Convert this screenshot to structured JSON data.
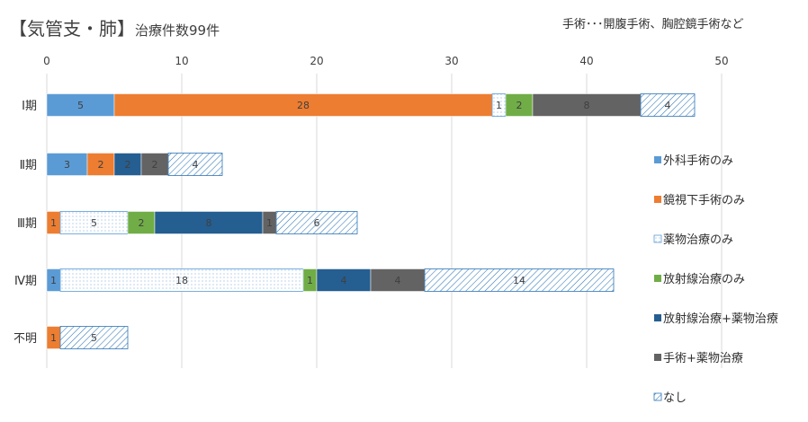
{
  "title_main": "【気管支・肺】",
  "title_sub": "治療件数99件",
  "note": "手術･･･開腹手術、胸腔鏡手術など",
  "chart_data": {
    "type": "bar",
    "orientation": "horizontal",
    "stacked": true,
    "categories": [
      "Ⅰ期",
      "Ⅱ期",
      "Ⅲ期",
      "Ⅳ期",
      "不明"
    ],
    "xlim": [
      0,
      50
    ],
    "xticks": [
      0,
      10,
      20,
      30,
      40,
      50
    ],
    "grid": true,
    "legend_position": "right",
    "series": [
      {
        "name": "外科手術のみ",
        "values": [
          5,
          3,
          0,
          1,
          0
        ],
        "color": "#5b9bd5",
        "pattern": "solid"
      },
      {
        "name": "鏡視下手術のみ",
        "values": [
          28,
          2,
          1,
          0,
          1
        ],
        "color": "#ed7d31",
        "pattern": "solid"
      },
      {
        "name": "薬物治療のみ",
        "values": [
          1,
          0,
          5,
          18,
          0
        ],
        "color": "#5b9bd5",
        "pattern": "dots"
      },
      {
        "name": "放射線治療のみ",
        "values": [
          2,
          0,
          2,
          1,
          0
        ],
        "color": "#70ad47",
        "pattern": "solid"
      },
      {
        "name": "放射線治療+薬物治療",
        "values": [
          0,
          2,
          8,
          4,
          0
        ],
        "color": "#255e91",
        "pattern": "solid"
      },
      {
        "name": "手術+薬物治療",
        "values": [
          8,
          2,
          1,
          4,
          0
        ],
        "color": "#636363",
        "pattern": "solid"
      },
      {
        "name": "なし",
        "values": [
          4,
          4,
          6,
          14,
          5
        ],
        "color": "#2e75b6",
        "pattern": "hatch"
      }
    ]
  }
}
